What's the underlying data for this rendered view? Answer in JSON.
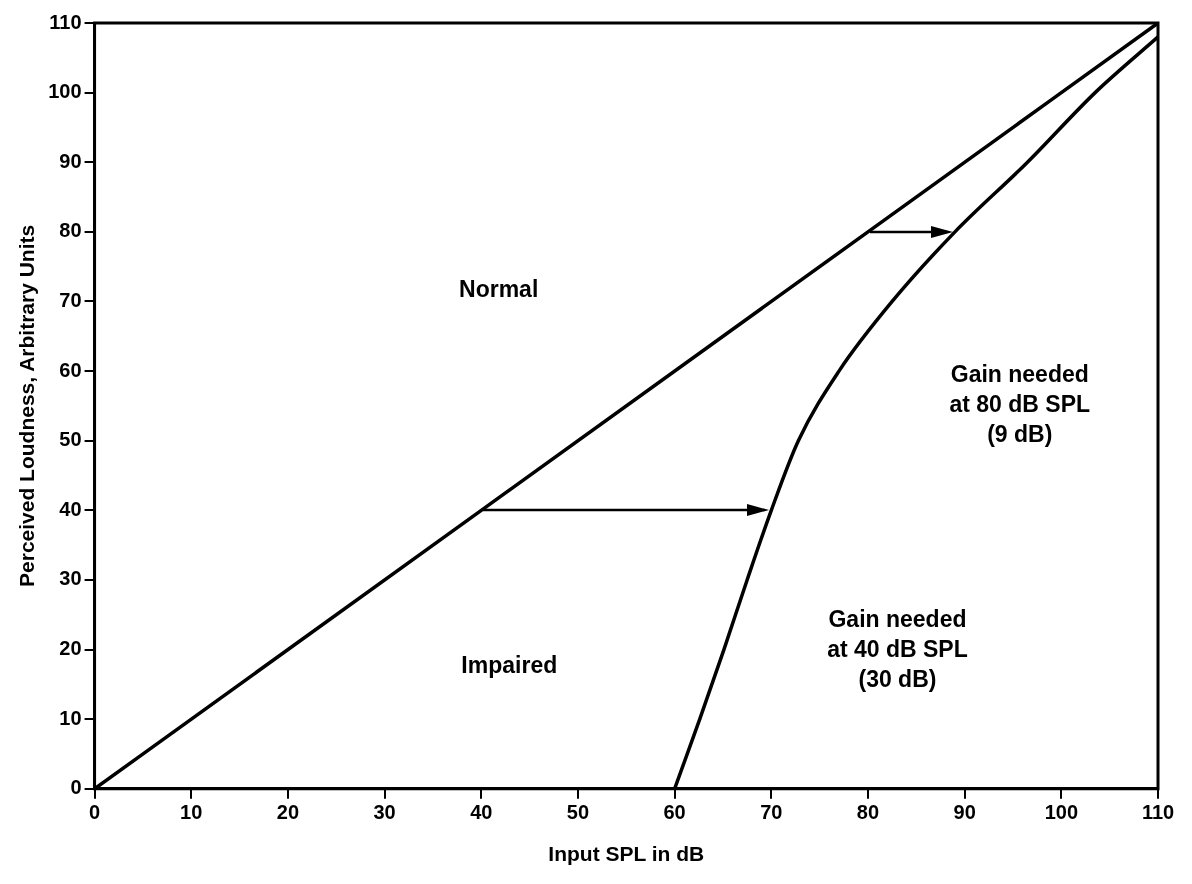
{
  "chart_data": {
    "type": "line",
    "xlabel": "Input SPL in dB",
    "ylabel": "Perceived Loudness, Arbitrary Units",
    "xlim": [
      0,
      110
    ],
    "xticks": [
      0,
      10,
      20,
      30,
      40,
      50,
      60,
      70,
      80,
      90,
      100,
      110
    ],
    "ylim": [
      0,
      110
    ],
    "yticks": [
      0,
      10,
      20,
      30,
      40,
      50,
      60,
      70,
      80,
      90,
      100,
      110
    ],
    "grid": false,
    "legend": false,
    "marker": "none",
    "line_style": "solid",
    "series": [
      {
        "color": "#000000",
        "x": [
          0,
          40,
          80,
          110
        ],
        "values": [
          0,
          40,
          80,
          110
        ]
      },
      {
        "color": "#000000",
        "x": [
          60,
          62.6,
          65.1,
          67.5,
          70,
          72.8,
          77,
          82.5,
          89,
          96.5,
          103.5,
          110
        ],
        "values": [
          0,
          10,
          20,
          30,
          40,
          50,
          60,
          70,
          80,
          90,
          100,
          108
        ]
      }
    ],
    "annotations": [
      "Normal",
      "Impaired",
      "Gain needed\nat 80 dB SPL\n(9 dB)",
      "Gain needed\nat 40 dB SPL\n(30 dB)"
    ]
  }
}
